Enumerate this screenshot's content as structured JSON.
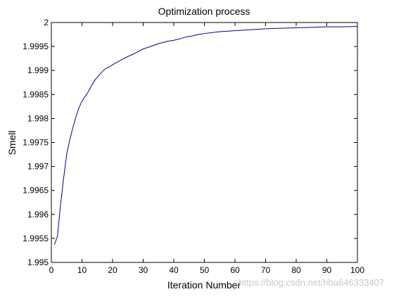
{
  "chart_data": {
    "type": "line",
    "title": "Optimization process",
    "xlabel": "Iteration Number",
    "ylabel": "Smell",
    "xlim": [
      0,
      100
    ],
    "ylim": [
      1.995,
      2.0
    ],
    "xticks": [
      "0",
      "10",
      "20",
      "30",
      "40",
      "50",
      "60",
      "70",
      "80",
      "90",
      "100"
    ],
    "yticks": [
      "1.995",
      "1.9955",
      "1.996",
      "1.9965",
      "1.997",
      "1.9975",
      "1.998",
      "1.9985",
      "1.999",
      "1.9995",
      "2"
    ],
    "grid": false,
    "series": [
      {
        "color": "#00008b",
        "x": [
          1,
          2,
          3,
          4,
          5,
          6,
          7,
          8,
          9,
          10,
          11,
          12,
          13,
          14,
          15,
          16,
          17,
          18,
          19,
          20,
          22,
          24,
          26,
          28,
          30,
          32,
          35,
          38,
          40,
          42,
          44,
          46,
          48,
          50,
          55,
          60,
          65,
          70,
          75,
          80,
          85,
          90,
          95,
          100
        ],
        "y": [
          1.99537,
          1.99555,
          1.9962,
          1.99675,
          1.99725,
          1.99755,
          1.9978,
          1.99803,
          1.99822,
          1.99836,
          1.99846,
          1.99855,
          1.99867,
          1.99878,
          1.99886,
          1.99893,
          1.999,
          1.99905,
          1.99908,
          1.99912,
          1.99919,
          1.99926,
          1.99932,
          1.99938,
          1.99945,
          1.99949,
          1.99956,
          1.99961,
          1.99963,
          1.99966,
          1.9997,
          1.99972,
          1.99975,
          1.99977,
          1.99981,
          1.99983,
          1.99985,
          1.99987,
          1.99988,
          1.99989,
          1.9999,
          1.99991,
          1.99991,
          1.99992
        ]
      }
    ]
  },
  "watermark": "https://blog.csdn.net/hba646333407"
}
